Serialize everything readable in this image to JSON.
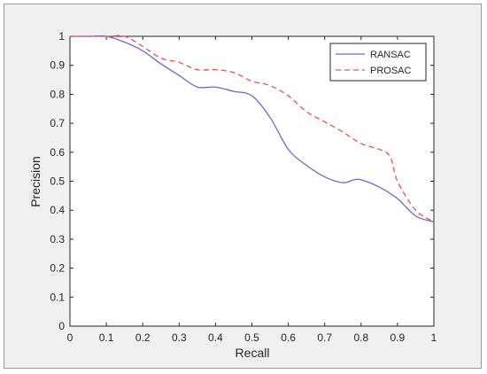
{
  "chart_data": {
    "type": "line",
    "title": "",
    "xlabel": "Recall",
    "ylabel": "Precision",
    "xlim": [
      0,
      1
    ],
    "ylim": [
      0,
      1
    ],
    "xticks": [
      "0",
      "0.1",
      "0.2",
      "0.3",
      "0.4",
      "0.5",
      "0.6",
      "0.7",
      "0.8",
      "0.9",
      "1"
    ],
    "yticks": [
      "0",
      "0.1",
      "0.2",
      "0.3",
      "0.4",
      "0.5",
      "0.6",
      "0.7",
      "0.8",
      "0.9",
      "1"
    ],
    "grid": false,
    "legend_position": "top-right",
    "series": [
      {
        "name": "RANSAC",
        "color": "#6a6acd",
        "style": "solid",
        "x": [
          0,
          0.05,
          0.1,
          0.15,
          0.2,
          0.25,
          0.3,
          0.35,
          0.4,
          0.45,
          0.5,
          0.55,
          0.6,
          0.65,
          0.7,
          0.75,
          0.78,
          0.8,
          0.85,
          0.9,
          0.95,
          1.0
        ],
        "y": [
          1.0,
          1.0,
          1.0,
          0.98,
          0.95,
          0.905,
          0.865,
          0.825,
          0.825,
          0.81,
          0.795,
          0.72,
          0.61,
          0.555,
          0.515,
          0.495,
          0.505,
          0.505,
          0.48,
          0.44,
          0.38,
          0.36
        ]
      },
      {
        "name": "PROSAC",
        "color": "#ef5050",
        "style": "dashed",
        "x": [
          0,
          0.1,
          0.15,
          0.2,
          0.25,
          0.3,
          0.35,
          0.4,
          0.45,
          0.5,
          0.55,
          0.6,
          0.65,
          0.7,
          0.75,
          0.8,
          0.85,
          0.88,
          0.9,
          0.95,
          1.0
        ],
        "y": [
          1.0,
          1.0,
          1.0,
          0.965,
          0.925,
          0.91,
          0.885,
          0.885,
          0.875,
          0.845,
          0.83,
          0.795,
          0.74,
          0.705,
          0.67,
          0.63,
          0.61,
          0.585,
          0.5,
          0.4,
          0.36
        ]
      }
    ]
  }
}
